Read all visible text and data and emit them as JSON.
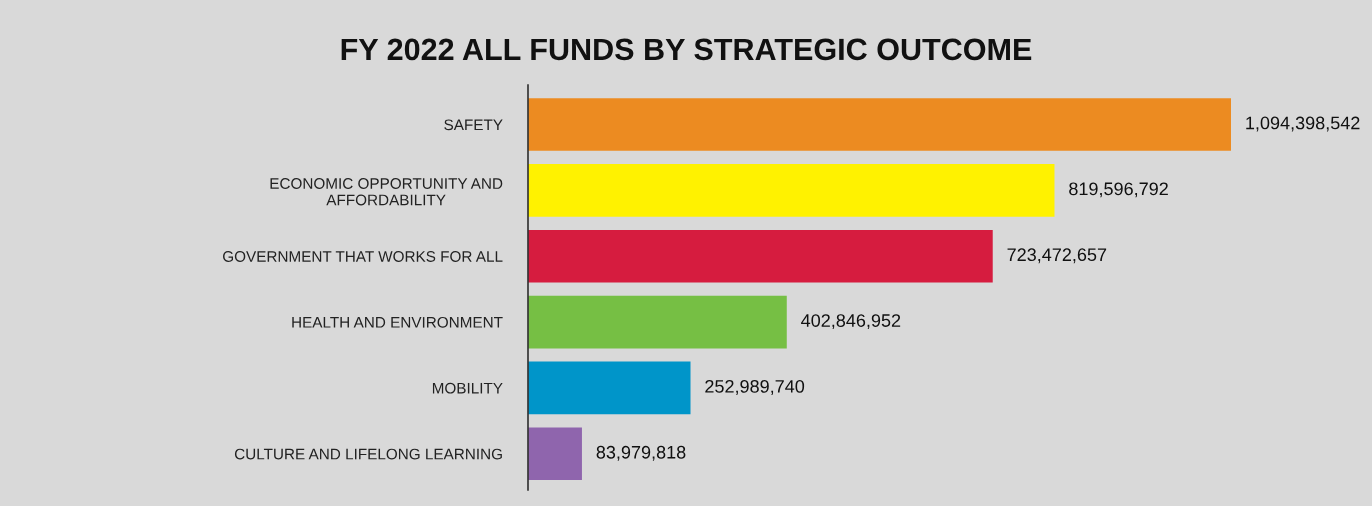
{
  "chart_data": {
    "type": "bar",
    "orientation": "horizontal",
    "title": "FY 2022 ALL FUNDS BY STRATEGIC OUTCOME",
    "categories": [
      "SAFETY",
      "ECONOMIC OPPORTUNITY AND\nAFFORDABILITY",
      "GOVERNMENT THAT WORKS FOR ALL",
      "HEALTH AND ENVIRONMENT",
      "MOBILITY",
      "CULTURE AND LIFELONG LEARNING"
    ],
    "values": [
      1094398542,
      819596792,
      723472657,
      402846952,
      252989740,
      83979818
    ],
    "colors": [
      "#ec8b21",
      "#fff200",
      "#d61c3f",
      "#76bf44",
      "#0095c9",
      "#8f65ad"
    ],
    "value_labels": [
      "1,094,398,542",
      "819,596,792",
      "723,472,657",
      "402,846,952",
      "252,989,740",
      "83,979,818"
    ],
    "grid": false,
    "legend": false
  }
}
